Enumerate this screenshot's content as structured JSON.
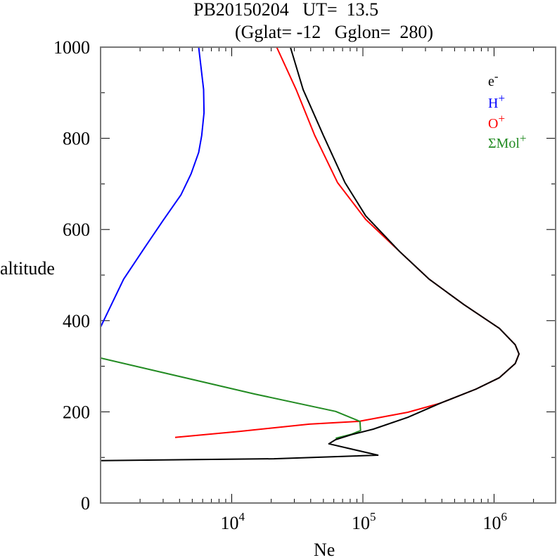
{
  "chart_data": {
    "type": "line",
    "title_line1": "PB20150204   UT=  13.5",
    "title_line2": "(Gglat= -12   Gglon=  280)",
    "xlabel": "Ne",
    "ylabel": "altitude",
    "xscale": "log",
    "xlim": [
      1000,
      3000000
    ],
    "ylim": [
      0,
      1000
    ],
    "x_ticks": [
      {
        "value": 10000,
        "base": "10",
        "exp": "4"
      },
      {
        "value": 100000,
        "base": "10",
        "exp": "5"
      },
      {
        "value": 1000000,
        "base": "10",
        "exp": "6"
      }
    ],
    "y_ticks": [
      {
        "value": 0,
        "label": "0"
      },
      {
        "value": 200,
        "label": "200"
      },
      {
        "value": 400,
        "label": "400"
      },
      {
        "value": 600,
        "label": "600"
      },
      {
        "value": 800,
        "label": "800"
      },
      {
        "value": 1000,
        "label": "1000"
      }
    ],
    "legend_position": "top-right",
    "series": [
      {
        "name": "e-",
        "label_base": "e",
        "label_sup": "-",
        "color": "#000000",
        "points": [
          [
            28000,
            1000
          ],
          [
            35000,
            907
          ],
          [
            50000,
            806
          ],
          [
            73000,
            703
          ],
          [
            105000,
            630
          ],
          [
            190000,
            552
          ],
          [
            320000,
            491
          ],
          [
            590000,
            435
          ],
          [
            1100000,
            383
          ],
          [
            1450000,
            347
          ],
          [
            1550000,
            327
          ],
          [
            1450000,
            306
          ],
          [
            1100000,
            275
          ],
          [
            730000,
            250
          ],
          [
            390000,
            219
          ],
          [
            220000,
            188
          ],
          [
            120000,
            162
          ],
          [
            82000,
            150
          ],
          [
            62000,
            139
          ],
          [
            55000,
            130
          ],
          [
            130000,
            105
          ],
          [
            21000,
            97
          ],
          [
            1000,
            93
          ]
        ]
      },
      {
        "name": "H+",
        "label_base": "H",
        "label_sup": "+",
        "color": "#0000ff",
        "points": [
          [
            5600,
            1000
          ],
          [
            6100,
            907
          ],
          [
            6150,
            856
          ],
          [
            5900,
            806
          ],
          [
            5600,
            769
          ],
          [
            4900,
            722
          ],
          [
            4100,
            676
          ],
          [
            3000,
            620
          ],
          [
            2200,
            563
          ],
          [
            1500,
            491
          ],
          [
            1000,
            386
          ]
        ]
      },
      {
        "name": "O+",
        "label_base": "O",
        "label_sup": "+",
        "color": "#ff0000",
        "points": [
          [
            22000,
            1000
          ],
          [
            31000,
            907
          ],
          [
            43000,
            806
          ],
          [
            64000,
            703
          ],
          [
            105000,
            622
          ],
          [
            190000,
            552
          ],
          [
            320000,
            491
          ],
          [
            590000,
            435
          ],
          [
            1100000,
            383
          ],
          [
            1450000,
            347
          ],
          [
            1550000,
            327
          ],
          [
            1450000,
            306
          ],
          [
            1100000,
            275
          ],
          [
            730000,
            250
          ],
          [
            390000,
            219
          ],
          [
            220000,
            199
          ],
          [
            93000,
            179
          ],
          [
            39000,
            173
          ],
          [
            11400,
            157
          ],
          [
            3700,
            144
          ]
        ]
      },
      {
        "name": "ΣMol+",
        "label_base": "ΣMol",
        "label_sup": "+",
        "color": "#228b22",
        "points": [
          [
            1000,
            318
          ],
          [
            15000,
            239
          ],
          [
            62000,
            201
          ],
          [
            95000,
            179
          ],
          [
            96000,
            159
          ],
          [
            82000,
            151
          ],
          [
            62000,
            142
          ]
        ]
      }
    ]
  }
}
